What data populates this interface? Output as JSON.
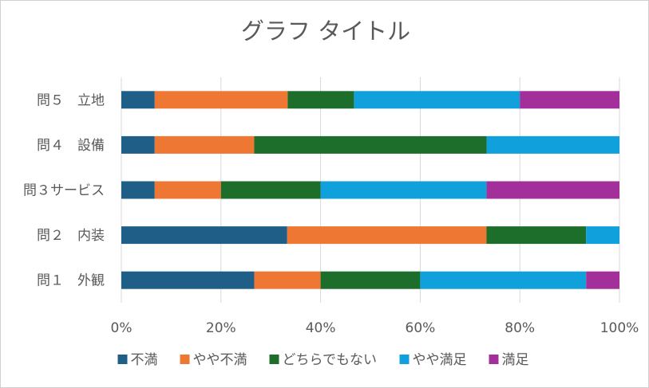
{
  "chart_data": {
    "type": "bar",
    "orientation": "horizontal",
    "stacked": "percent",
    "title": "グラフ タイトル",
    "categories": [
      "問１　外観",
      "問２　内装",
      "問３サービス",
      "問４　設備",
      "問５　立地"
    ],
    "series": [
      {
        "name": "不満",
        "color": "#1f5e87",
        "values": [
          26.7,
          33.3,
          6.7,
          6.7,
          6.7
        ]
      },
      {
        "name": "やや不満",
        "color": "#ef7734",
        "values": [
          13.3,
          40.0,
          13.3,
          20.0,
          26.7
        ]
      },
      {
        "name": "どちらでもない",
        "color": "#1c6e2a",
        "values": [
          20.0,
          20.0,
          20.0,
          46.7,
          13.3
        ]
      },
      {
        "name": "やや満足",
        "color": "#10a1dc",
        "values": [
          33.3,
          6.7,
          33.3,
          26.7,
          33.3
        ]
      },
      {
        "name": "満足",
        "color": "#a3309a",
        "values": [
          6.7,
          0.0,
          26.7,
          0.0,
          20.0
        ]
      }
    ],
    "xticks": [
      "0%",
      "20%",
      "40%",
      "60%",
      "80%",
      "100%"
    ],
    "xlim": [
      0,
      100
    ],
    "grid": "vertical",
    "legend": "bottom"
  }
}
